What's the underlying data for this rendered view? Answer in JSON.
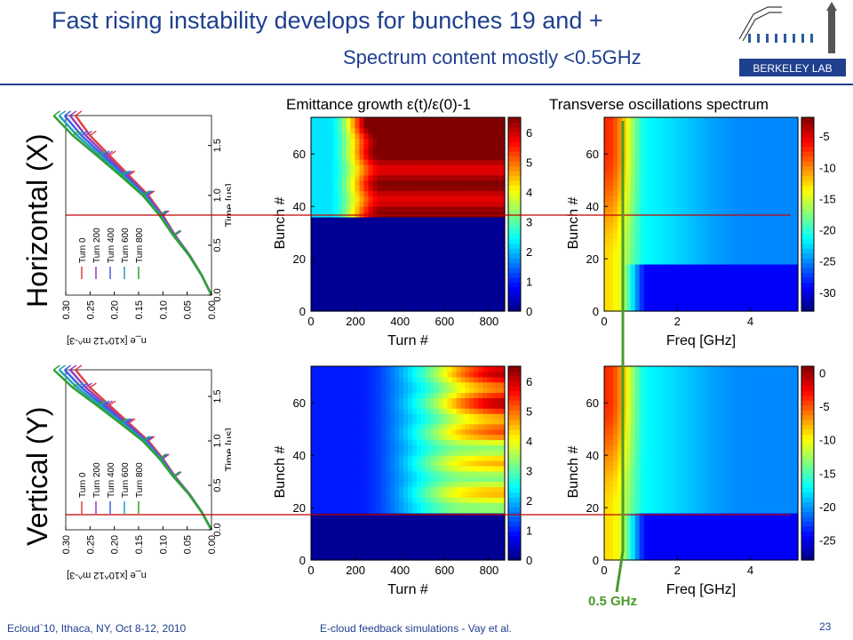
{
  "slide": {
    "title": "Fast rising instability develops for bunches 19 and +",
    "subtitle": "Spectrum content mostly <0.5GHz",
    "row_labels": [
      "Horizontal (X)",
      "Vertical (Y)"
    ],
    "col_titles": [
      "Emittance growth ε(t)/ε(0)-1",
      "Transverse oscillations spectrum"
    ],
    "annotation": "0.5 GHz",
    "footer_left": "Ecloud`10, Ithaca, NY, Oct 8-12, 2010",
    "footer_center": "E-cloud feedback simulations - Vay et al.",
    "page_number": "23",
    "logo_text": "BERKELEY LAB",
    "colors": {
      "title": "#1f3f8f",
      "marker_line": "#c00000",
      "freq_line": "#4a9a2a"
    }
  },
  "chart_data": [
    {
      "type": "line",
      "panel": "horizontal-density",
      "xlabel": "Time [μs]",
      "ylabel": "n_e [x10^12 m^-3]",
      "x_ticks": [
        "0.0",
        "0.5",
        "1.0",
        "1.5"
      ],
      "y_ticks": [
        "0.00",
        "0.05",
        "0.10",
        "0.15",
        "0.20",
        "0.25",
        "0.30"
      ],
      "xlim": [
        0,
        1.8
      ],
      "ylim": [
        0,
        0.3
      ],
      "series": [
        {
          "name": "Turn 0",
          "color": "#e04040"
        },
        {
          "name": "Turn 200",
          "color": "#9040c0"
        },
        {
          "name": "Turn 400",
          "color": "#4060e0"
        },
        {
          "name": "Turn 600",
          "color": "#20a0c0"
        },
        {
          "name": "Turn 800",
          "color": "#30a030"
        }
      ],
      "x": [
        0.0,
        0.2,
        0.4,
        0.6,
        0.8,
        1.0,
        1.2,
        1.4,
        1.6,
        1.8
      ],
      "y": [
        0.0,
        0.02,
        0.045,
        0.075,
        0.1,
        0.13,
        0.17,
        0.21,
        0.25,
        0.28
      ]
    },
    {
      "type": "heatmap",
      "panel": "horizontal-emittance",
      "xlabel": "Turn #",
      "ylabel": "Bunch #",
      "x_ticks": [
        "0",
        "200",
        "400",
        "600",
        "800"
      ],
      "y_ticks": [
        "0",
        "20",
        "40",
        "60"
      ],
      "colorbar_ticks": [
        "0",
        "1",
        "2",
        "3",
        "4",
        "5",
        "6"
      ],
      "colorbar_range": [
        0,
        6.5
      ],
      "xlim": [
        0,
        870
      ],
      "ylim": [
        0,
        74
      ],
      "unstable_from_bunch": 37
    },
    {
      "type": "heatmap",
      "panel": "horizontal-spectrum",
      "xlabel": "Freq [GHz]",
      "ylabel": "Bunch #",
      "x_ticks": [
        "0",
        "2",
        "4"
      ],
      "y_ticks": [
        "0",
        "20",
        "40",
        "60"
      ],
      "colorbar_ticks": [
        "-5",
        "-10",
        "-15",
        "-20",
        "-25",
        "-30"
      ],
      "colorbar_range": [
        -33,
        -2
      ],
      "xlim": [
        0,
        5.3
      ],
      "ylim": [
        0,
        74
      ]
    },
    {
      "type": "line",
      "panel": "vertical-density",
      "xlabel": "Time [μs]",
      "ylabel": "n_e [x10^12 m^-3]",
      "x_ticks": [
        "0.0",
        "0.5",
        "1.0",
        "1.5"
      ],
      "y_ticks": [
        "0.00",
        "0.05",
        "0.10",
        "0.15",
        "0.20",
        "0.25",
        "0.30"
      ],
      "xlim": [
        0,
        1.8
      ],
      "ylim": [
        0,
        0.3
      ],
      "series": [
        {
          "name": "Turn 0",
          "color": "#e04040"
        },
        {
          "name": "Turn 200",
          "color": "#9040c0"
        },
        {
          "name": "Turn 400",
          "color": "#4060e0"
        },
        {
          "name": "Turn 600",
          "color": "#20a0c0"
        },
        {
          "name": "Turn 800",
          "color": "#30a030"
        }
      ],
      "x": [
        0.0,
        0.2,
        0.4,
        0.6,
        0.8,
        1.0,
        1.2,
        1.4,
        1.6,
        1.8
      ],
      "y": [
        0.0,
        0.02,
        0.045,
        0.075,
        0.1,
        0.13,
        0.17,
        0.21,
        0.25,
        0.28
      ]
    },
    {
      "type": "heatmap",
      "panel": "vertical-emittance",
      "xlabel": "Turn #",
      "ylabel": "Bunch #",
      "x_ticks": [
        "0",
        "200",
        "400",
        "600",
        "800"
      ],
      "y_ticks": [
        "0",
        "20",
        "40",
        "60"
      ],
      "colorbar_ticks": [
        "0",
        "1",
        "2",
        "3",
        "4",
        "5",
        "6"
      ],
      "colorbar_range": [
        0,
        6.5
      ],
      "xlim": [
        0,
        870
      ],
      "ylim": [
        0,
        74
      ],
      "unstable_from_bunch": 19
    },
    {
      "type": "heatmap",
      "panel": "vertical-spectrum",
      "xlabel": "Freq [GHz]",
      "ylabel": "Bunch #",
      "x_ticks": [
        "0",
        "2",
        "4"
      ],
      "y_ticks": [
        "0",
        "20",
        "40",
        "60"
      ],
      "colorbar_ticks": [
        "0",
        "-5",
        "-10",
        "-15",
        "-20",
        "-25"
      ],
      "colorbar_range": [
        -28,
        1
      ],
      "xlim": [
        0,
        5.3
      ],
      "ylim": [
        0,
        74
      ]
    }
  ]
}
